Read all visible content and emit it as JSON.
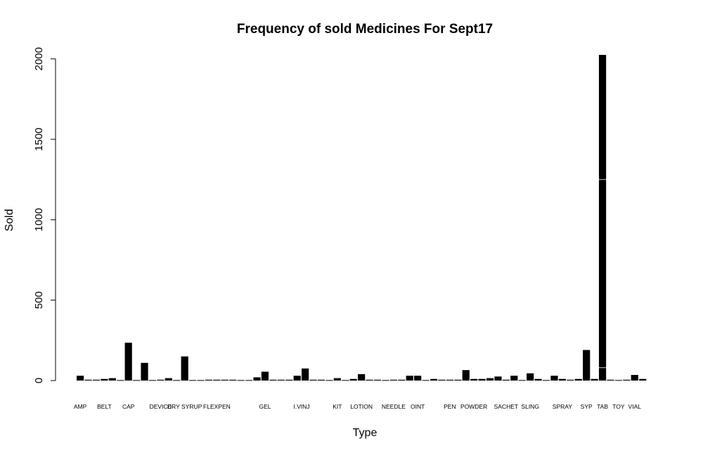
{
  "chart_data": {
    "type": "bar",
    "title": "Frequency of sold Medicines For Sept17",
    "xlabel": "Type",
    "ylabel": "Sold",
    "ylim": [
      0,
      2025
    ],
    "yticks": [
      0,
      500,
      1000,
      1500,
      2000
    ],
    "grid": false,
    "legend": "none",
    "bar_color": "#000000",
    "x_tick_labels": [
      "AMP",
      "BELT",
      "CAP",
      "DEVICE",
      "DRY SYRUP",
      "FLEXPEN",
      "GEL",
      "I.V",
      "INJ",
      "KIT",
      "LOTION",
      "NEEDLE",
      "OINT",
      "PEN",
      "POWDER",
      "SACHET",
      "SLING",
      "SPRAY",
      "SYP",
      "TAB",
      "TOY",
      "VIAL"
    ],
    "values": [
      30,
      5,
      5,
      10,
      15,
      3,
      235,
      3,
      110,
      3,
      5,
      15,
      3,
      150,
      3,
      3,
      5,
      5,
      5,
      5,
      3,
      3,
      20,
      55,
      5,
      5,
      5,
      30,
      75,
      5,
      5,
      3,
      15,
      3,
      10,
      40,
      5,
      5,
      3,
      5,
      5,
      30,
      30,
      3,
      10,
      5,
      5,
      5,
      65,
      10,
      10,
      15,
      25,
      5,
      30,
      3,
      45,
      10,
      3,
      30,
      10,
      5,
      10,
      190,
      10,
      2025,
      5,
      3,
      5,
      35,
      10
    ],
    "segment_lines": [
      {
        "bar": 65,
        "values": [
          80,
          1250
        ]
      }
    ]
  }
}
